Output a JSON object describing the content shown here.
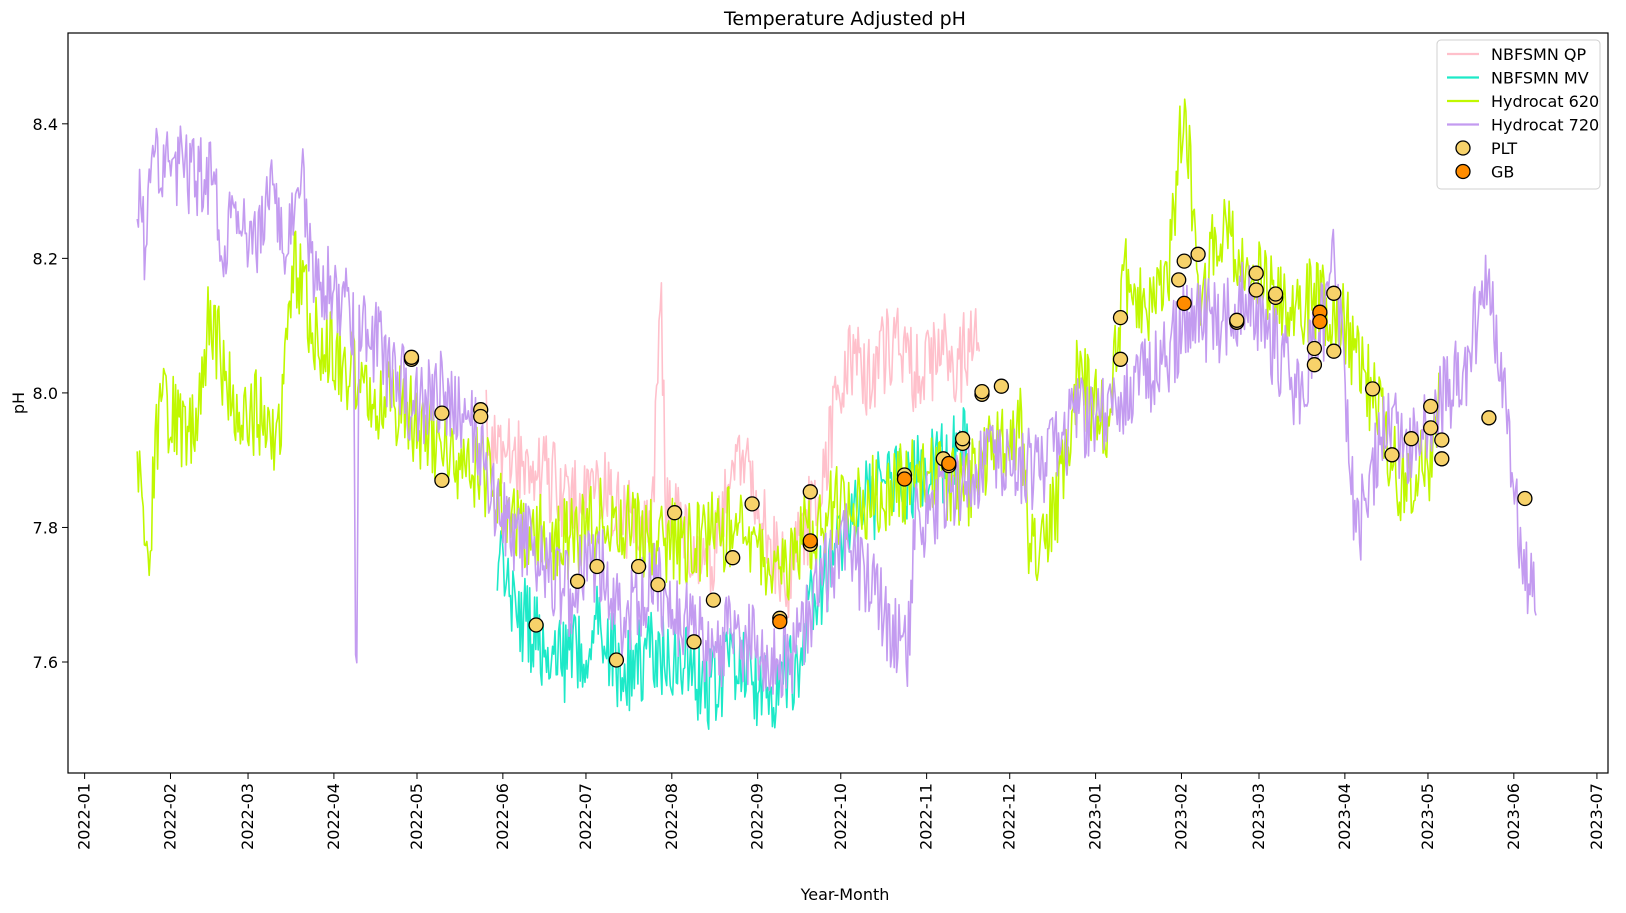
{
  "chart_data": {
    "type": "line",
    "title": "Temperature Adjusted pH",
    "xlabel": "Year-Month",
    "ylabel": "pH",
    "x_type": "date",
    "xlim": [
      "2021-12-26",
      "2023-07-05"
    ],
    "ylim": [
      7.435,
      8.535
    ],
    "x_ticks": [
      "2022-01-01",
      "2022-02-01",
      "2022-03-01",
      "2022-04-01",
      "2022-05-01",
      "2022-06-01",
      "2022-07-01",
      "2022-08-01",
      "2022-09-01",
      "2022-10-01",
      "2022-11-01",
      "2022-12-01",
      "2023-01-01",
      "2023-02-01",
      "2023-03-01",
      "2023-04-01",
      "2023-05-01",
      "2023-06-01",
      "2023-07-01"
    ],
    "x_tick_labels": [
      "2022-01",
      "2022-02",
      "2022-03",
      "2022-04",
      "2022-05",
      "2022-06",
      "2022-07",
      "2022-08",
      "2022-09",
      "2022-10",
      "2022-11",
      "2022-12",
      "2023-01",
      "2023-02",
      "2023-03",
      "2023-04",
      "2023-05",
      "2023-06",
      "2023-07"
    ],
    "y_ticks": [
      7.6,
      7.8,
      8.0,
      8.2,
      8.4
    ],
    "y_tick_labels": [
      "7.6",
      "7.8",
      "8.0",
      "8.2",
      "8.4"
    ],
    "grid": false,
    "legend_position": "top-right",
    "series": [
      {
        "name": "NBFSMN QP",
        "kind": "line",
        "color": "#ffc0cb",
        "points": [
          [
            "2022-05-26",
            7.94
          ],
          [
            "2022-06-05",
            7.9
          ],
          [
            "2022-06-15",
            7.88
          ],
          [
            "2022-06-25",
            7.84
          ],
          [
            "2022-07-05",
            7.86
          ],
          [
            "2022-07-15",
            7.82
          ],
          [
            "2022-07-25",
            7.8
          ],
          [
            "2022-07-28",
            8.15
          ],
          [
            "2022-07-30",
            7.82
          ],
          [
            "2022-08-05",
            7.8
          ],
          [
            "2022-08-15",
            7.76
          ],
          [
            "2022-08-22",
            7.85
          ],
          [
            "2022-08-28",
            7.92
          ],
          [
            "2022-09-05",
            7.78
          ],
          [
            "2022-09-12",
            7.72
          ],
          [
            "2022-09-20",
            7.82
          ],
          [
            "2022-09-28",
            7.95
          ],
          [
            "2022-10-05",
            8.06
          ],
          [
            "2022-10-12",
            8.02
          ],
          [
            "2022-10-20",
            8.08
          ],
          [
            "2022-10-28",
            8.03
          ],
          [
            "2022-11-05",
            8.06
          ],
          [
            "2022-11-12",
            8.04
          ],
          [
            "2022-11-20",
            8.1
          ]
        ]
      },
      {
        "name": "NBFSMN MV",
        "kind": "line",
        "color": "#1de9c8",
        "points": [
          [
            "2022-05-30",
            7.76
          ],
          [
            "2022-06-05",
            7.68
          ],
          [
            "2022-06-15",
            7.63
          ],
          [
            "2022-06-25",
            7.6
          ],
          [
            "2022-07-05",
            7.65
          ],
          [
            "2022-07-15",
            7.58
          ],
          [
            "2022-07-25",
            7.62
          ],
          [
            "2022-08-05",
            7.6
          ],
          [
            "2022-08-15",
            7.56
          ],
          [
            "2022-08-25",
            7.6
          ],
          [
            "2022-09-05",
            7.55
          ],
          [
            "2022-09-15",
            7.6
          ],
          [
            "2022-09-22",
            7.7
          ],
          [
            "2022-10-01",
            7.78
          ],
          [
            "2022-10-10",
            7.84
          ],
          [
            "2022-10-20",
            7.86
          ],
          [
            "2022-10-30",
            7.88
          ],
          [
            "2022-11-08",
            7.9
          ],
          [
            "2022-11-16",
            7.92
          ]
        ]
      },
      {
        "name": "Hydrocat 620",
        "kind": "line",
        "color": "#c0f800",
        "points": [
          [
            "2022-01-20",
            7.88
          ],
          [
            "2022-01-24",
            7.76
          ],
          [
            "2022-01-28",
            7.98
          ],
          [
            "2022-02-10",
            7.94
          ],
          [
            "2022-02-15",
            8.12
          ],
          [
            "2022-02-24",
            7.98
          ],
          [
            "2022-03-05",
            7.97
          ],
          [
            "2022-03-12",
            7.92
          ],
          [
            "2022-03-18",
            8.2
          ],
          [
            "2022-03-25",
            8.08
          ],
          [
            "2022-04-05",
            8.04
          ],
          [
            "2022-04-15",
            8.0
          ],
          [
            "2022-04-25",
            7.98
          ],
          [
            "2022-05-10",
            7.92
          ],
          [
            "2022-05-25",
            7.88
          ],
          [
            "2022-06-10",
            7.8
          ],
          [
            "2022-06-25",
            7.78
          ],
          [
            "2022-07-10",
            7.82
          ],
          [
            "2022-07-25",
            7.78
          ],
          [
            "2022-08-10",
            7.78
          ],
          [
            "2022-08-25",
            7.8
          ],
          [
            "2022-09-08",
            7.72
          ],
          [
            "2022-09-20",
            7.8
          ],
          [
            "2022-10-05",
            7.84
          ],
          [
            "2022-10-20",
            7.86
          ],
          [
            "2022-11-05",
            7.88
          ],
          [
            "2022-11-15",
            7.86
          ],
          [
            "2022-11-25",
            7.92
          ],
          [
            "2022-12-05",
            7.95
          ],
          [
            "2022-12-08",
            7.76
          ],
          [
            "2022-12-18",
            7.82
          ],
          [
            "2022-12-25",
            8.02
          ],
          [
            "2023-01-05",
            7.96
          ],
          [
            "2023-01-12",
            8.18
          ],
          [
            "2023-01-20",
            8.1
          ],
          [
            "2023-01-28",
            8.2
          ],
          [
            "2023-02-02",
            8.44
          ],
          [
            "2023-02-08",
            8.12
          ],
          [
            "2023-02-15",
            8.26
          ],
          [
            "2023-02-22",
            8.2
          ],
          [
            "2023-03-01",
            8.16
          ],
          [
            "2023-03-10",
            8.12
          ],
          [
            "2023-03-20",
            8.14
          ],
          [
            "2023-04-01",
            8.1
          ],
          [
            "2023-04-12",
            7.98
          ],
          [
            "2023-04-22",
            7.86
          ],
          [
            "2023-05-02",
            7.9
          ],
          [
            "2023-05-05",
            7.98
          ]
        ]
      },
      {
        "name": "Hydrocat 720",
        "kind": "line",
        "color": "#c39bf0",
        "points": [
          [
            "2022-01-20",
            8.3
          ],
          [
            "2022-01-23",
            8.22
          ],
          [
            "2022-01-26",
            8.33
          ],
          [
            "2022-02-01",
            8.34
          ],
          [
            "2022-02-16",
            8.32
          ],
          [
            "2022-02-20",
            8.22
          ],
          [
            "2022-02-25",
            8.25
          ],
          [
            "2022-03-05",
            8.23
          ],
          [
            "2022-03-10",
            8.3
          ],
          [
            "2022-03-15",
            8.2
          ],
          [
            "2022-03-20",
            8.33
          ],
          [
            "2022-03-25",
            8.18
          ],
          [
            "2022-04-05",
            8.14
          ],
          [
            "2022-04-08",
            8.1
          ],
          [
            "2022-04-09",
            7.49
          ],
          [
            "2022-04-10",
            8.12
          ],
          [
            "2022-04-20",
            8.04
          ],
          [
            "2022-05-01",
            7.98
          ],
          [
            "2022-05-10",
            8.0
          ],
          [
            "2022-05-20",
            7.96
          ],
          [
            "2022-05-27",
            7.86
          ],
          [
            "2022-06-05",
            7.8
          ],
          [
            "2022-06-15",
            7.74
          ],
          [
            "2022-06-25",
            7.7
          ],
          [
            "2022-07-05",
            7.76
          ],
          [
            "2022-07-15",
            7.66
          ],
          [
            "2022-07-25",
            7.72
          ],
          [
            "2022-08-05",
            7.66
          ],
          [
            "2022-08-15",
            7.62
          ],
          [
            "2022-08-25",
            7.64
          ],
          [
            "2022-09-05",
            7.6
          ],
          [
            "2022-09-15",
            7.62
          ],
          [
            "2022-09-22",
            7.7
          ],
          [
            "2022-10-02",
            7.78
          ],
          [
            "2022-10-25",
            7.61
          ],
          [
            "2022-10-28",
            7.8
          ],
          [
            "2022-11-05",
            7.84
          ],
          [
            "2022-11-15",
            7.88
          ],
          [
            "2022-11-25",
            7.9
          ],
          [
            "2022-12-05",
            7.88
          ],
          [
            "2022-12-15",
            7.9
          ],
          [
            "2022-12-25",
            7.96
          ],
          [
            "2023-01-05",
            7.98
          ],
          [
            "2023-01-15",
            8.0
          ],
          [
            "2023-01-25",
            8.05
          ],
          [
            "2023-02-05",
            8.12
          ],
          [
            "2023-02-15",
            8.1
          ],
          [
            "2023-02-25",
            8.14
          ],
          [
            "2023-03-05",
            8.08
          ],
          [
            "2023-03-15",
            8.0
          ],
          [
            "2023-03-25",
            8.12
          ],
          [
            "2023-03-28",
            8.22
          ],
          [
            "2023-04-05",
            7.78
          ],
          [
            "2023-04-15",
            7.96
          ],
          [
            "2023-04-25",
            7.92
          ],
          [
            "2023-05-05",
            7.98
          ],
          [
            "2023-05-15",
            8.04
          ],
          [
            "2023-05-22",
            8.18
          ],
          [
            "2023-05-28",
            8.0
          ],
          [
            "2023-06-05",
            7.72
          ],
          [
            "2023-06-09",
            7.7
          ]
        ]
      },
      {
        "name": "PLT",
        "kind": "scatter",
        "color": "#f7d26a",
        "edge_color": "#000000",
        "points": [
          [
            "2022-04-29",
            8.05
          ],
          [
            "2022-04-29",
            8.053
          ],
          [
            "2022-05-10",
            7.97
          ],
          [
            "2022-05-10",
            7.87
          ],
          [
            "2022-05-24",
            7.975
          ],
          [
            "2022-05-24",
            7.965
          ],
          [
            "2022-06-13",
            7.655
          ],
          [
            "2022-06-28",
            7.72
          ],
          [
            "2022-07-05",
            7.742
          ],
          [
            "2022-07-12",
            7.603
          ],
          [
            "2022-07-20",
            7.742
          ],
          [
            "2022-07-27",
            7.715
          ],
          [
            "2022-08-02",
            7.822
          ],
          [
            "2022-08-09",
            7.63
          ],
          [
            "2022-08-16",
            7.692
          ],
          [
            "2022-08-23",
            7.755
          ],
          [
            "2022-08-30",
            7.835
          ],
          [
            "2022-09-09",
            7.665
          ],
          [
            "2022-09-20",
            7.853
          ],
          [
            "2022-09-20",
            7.775
          ],
          [
            "2022-10-24",
            7.878
          ],
          [
            "2022-11-07",
            7.902
          ],
          [
            "2022-11-09",
            7.892
          ],
          [
            "2022-11-14",
            7.925
          ],
          [
            "2022-11-14",
            7.932
          ],
          [
            "2022-11-21",
            7.998
          ],
          [
            "2022-11-21",
            8.002
          ],
          [
            "2022-11-28",
            8.01
          ],
          [
            "2023-01-10",
            8.112
          ],
          [
            "2023-01-10",
            8.05
          ],
          [
            "2023-01-31",
            8.168
          ],
          [
            "2023-02-02",
            8.196
          ],
          [
            "2023-02-07",
            8.206
          ],
          [
            "2023-02-21",
            8.105
          ],
          [
            "2023-02-21",
            8.108
          ],
          [
            "2023-02-28",
            8.178
          ],
          [
            "2023-02-28",
            8.153
          ],
          [
            "2023-03-07",
            8.142
          ],
          [
            "2023-03-07",
            8.147
          ],
          [
            "2023-03-21",
            8.066
          ],
          [
            "2023-03-21",
            8.042
          ],
          [
            "2023-03-28",
            8.148
          ],
          [
            "2023-03-28",
            8.062
          ],
          [
            "2023-04-11",
            8.006
          ],
          [
            "2023-04-18",
            7.908
          ],
          [
            "2023-04-25",
            7.932
          ],
          [
            "2023-05-02",
            7.98
          ],
          [
            "2023-05-02",
            7.948
          ],
          [
            "2023-05-06",
            7.93
          ],
          [
            "2023-05-06",
            7.902
          ],
          [
            "2023-05-23",
            7.963
          ],
          [
            "2023-06-05",
            7.843
          ]
        ]
      },
      {
        "name": "GB",
        "kind": "scatter",
        "color": "#ff8c00",
        "edge_color": "#000000",
        "points": [
          [
            "2022-09-09",
            7.66
          ],
          [
            "2022-09-20",
            7.78
          ],
          [
            "2022-10-24",
            7.872
          ],
          [
            "2022-11-09",
            7.895
          ],
          [
            "2023-02-02",
            8.133
          ],
          [
            "2023-03-23",
            8.12
          ],
          [
            "2023-03-23",
            8.106
          ]
        ]
      }
    ]
  }
}
